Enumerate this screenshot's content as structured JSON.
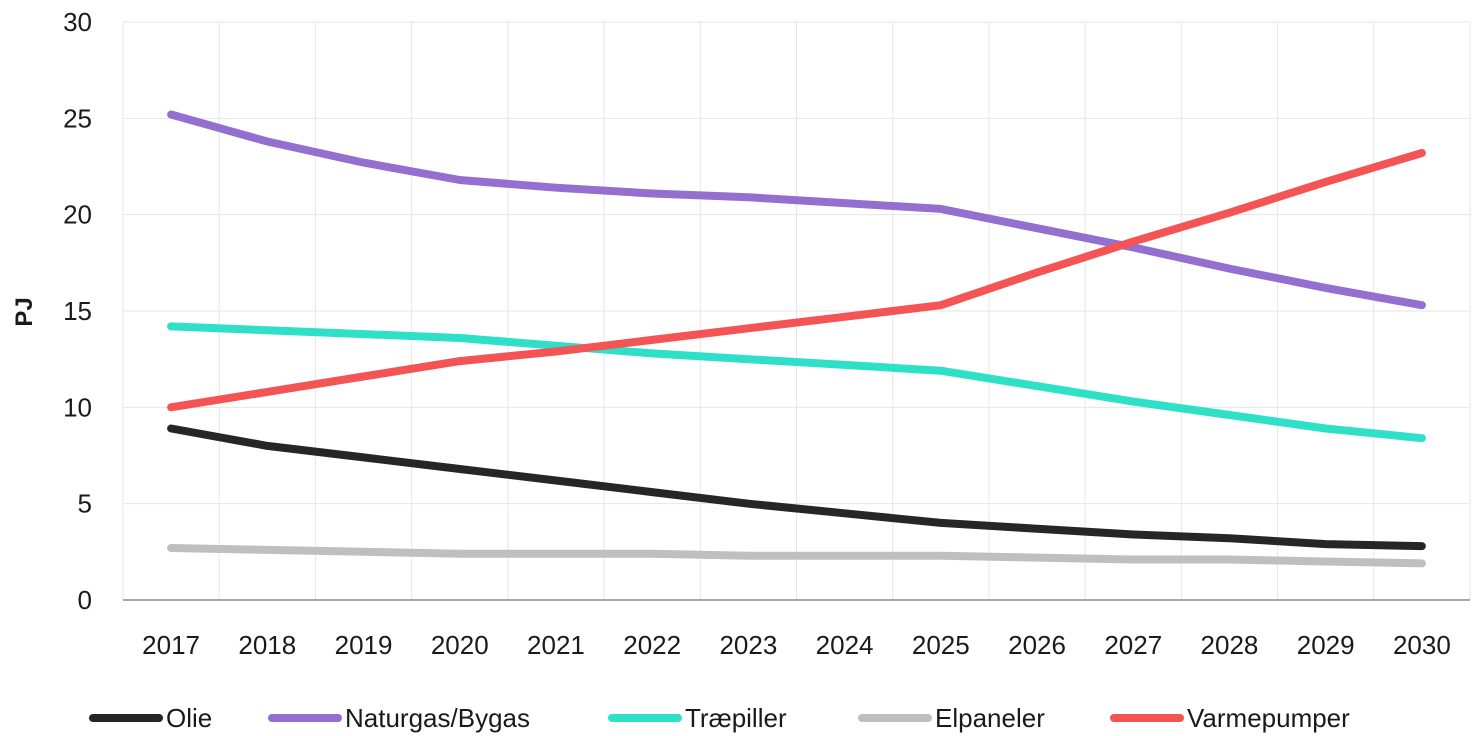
{
  "chart_data": {
    "type": "line",
    "title": "",
    "xlabel": "",
    "ylabel": "PJ",
    "categories": [
      "2017",
      "2018",
      "2019",
      "2020",
      "2021",
      "2022",
      "2023",
      "2024",
      "2025",
      "2026",
      "2027",
      "2028",
      "2029",
      "2030"
    ],
    "ylim": [
      0,
      30
    ],
    "yticks": [
      0,
      5,
      10,
      15,
      20,
      25,
      30
    ],
    "grid": true,
    "legend_position": "bottom",
    "series": [
      {
        "name": "Olie",
        "color": "#262626",
        "values": [
          8.9,
          8.0,
          7.4,
          6.8,
          6.2,
          5.6,
          5.0,
          4.5,
          4.0,
          3.7,
          3.4,
          3.2,
          2.9,
          2.8
        ]
      },
      {
        "name": "Naturgas/Bygas",
        "color": "#9370d0",
        "values": [
          25.2,
          23.8,
          22.7,
          21.8,
          21.4,
          21.1,
          20.9,
          20.6,
          20.3,
          19.3,
          18.3,
          17.2,
          16.2,
          15.3
        ]
      },
      {
        "name": "Træpiller",
        "color": "#2ee0c8",
        "values": [
          14.2,
          14.0,
          13.8,
          13.6,
          13.2,
          12.8,
          12.5,
          12.2,
          11.9,
          11.1,
          10.3,
          9.6,
          8.9,
          8.4
        ]
      },
      {
        "name": "Elpaneler",
        "color": "#bfbfbf",
        "values": [
          2.7,
          2.6,
          2.5,
          2.4,
          2.4,
          2.4,
          2.3,
          2.3,
          2.3,
          2.2,
          2.1,
          2.1,
          2.0,
          1.9
        ]
      },
      {
        "name": "Varmepumper",
        "color": "#f45454",
        "values": [
          10.0,
          10.8,
          11.6,
          12.4,
          12.9,
          13.5,
          14.1,
          14.7,
          15.3,
          17.0,
          18.6,
          20.1,
          21.7,
          23.2
        ]
      }
    ]
  }
}
